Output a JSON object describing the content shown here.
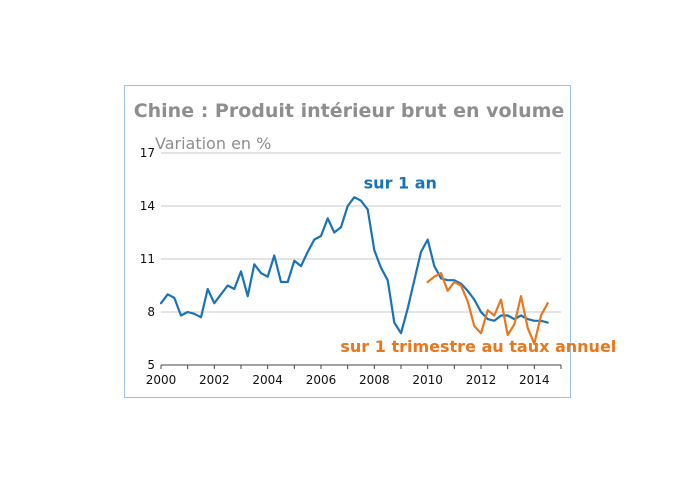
{
  "chart_data": {
    "type": "line",
    "title": "Chine : Produit intérieur brut en volume",
    "ylabel": "Variation en %",
    "xlabel": "",
    "xlim": [
      2000,
      2015
    ],
    "ylim": [
      5,
      17
    ],
    "yticks": [
      5,
      8,
      11,
      14,
      17
    ],
    "ytick_labels": [
      "5",
      "8",
      "11",
      "14",
      "17"
    ],
    "xticks": [
      2000,
      2002,
      2004,
      2006,
      2008,
      2010,
      2012,
      2014
    ],
    "xtick_labels": [
      "2000",
      "2002",
      "2004",
      "2006",
      "2008",
      "2010",
      "2012",
      "2014"
    ],
    "grid": "horizontal",
    "series": [
      {
        "name": "sur 1 an",
        "color": "#1a72b8",
        "x": [
          2000.0,
          2000.25,
          2000.5,
          2000.75,
          2001.0,
          2001.25,
          2001.5,
          2001.75,
          2002.0,
          2002.25,
          2002.5,
          2002.75,
          2003.0,
          2003.25,
          2003.5,
          2003.75,
          2004.0,
          2004.25,
          2004.5,
          2004.75,
          2005.0,
          2005.25,
          2005.5,
          2005.75,
          2006.0,
          2006.25,
          2006.5,
          2006.75,
          2007.0,
          2007.25,
          2007.5,
          2007.75,
          2008.0,
          2008.25,
          2008.5,
          2008.75,
          2009.0,
          2009.25,
          2009.5,
          2009.75,
          2010.0,
          2010.25,
          2010.5,
          2010.75,
          2011.0,
          2011.25,
          2011.5,
          2011.75,
          2012.0,
          2012.25,
          2012.5,
          2012.75,
          2013.0,
          2013.25,
          2013.5,
          2013.75,
          2014.0,
          2014.25,
          2014.5
        ],
        "values": [
          8.5,
          9.0,
          8.8,
          7.8,
          8.0,
          7.9,
          7.7,
          9.3,
          8.5,
          9.0,
          9.5,
          9.3,
          10.3,
          8.9,
          10.7,
          10.2,
          10.0,
          11.2,
          9.7,
          9.7,
          10.9,
          10.6,
          11.4,
          12.1,
          12.3,
          13.3,
          12.5,
          12.8,
          14.0,
          14.5,
          14.3,
          13.8,
          11.5,
          10.5,
          9.8,
          7.4,
          6.8,
          8.2,
          9.8,
          11.4,
          12.1,
          10.6,
          9.9,
          9.8,
          9.8,
          9.6,
          9.2,
          8.7,
          8.0,
          7.6,
          7.5,
          7.8,
          7.8,
          7.6,
          7.8,
          7.6,
          7.5,
          7.5,
          7.4
        ]
      },
      {
        "name": "sur 1 trimestre au taux annuel",
        "color": "#e8771e",
        "x": [
          2010.0,
          2010.25,
          2010.5,
          2010.75,
          2011.0,
          2011.25,
          2011.5,
          2011.75,
          2012.0,
          2012.25,
          2012.5,
          2012.75,
          2013.0,
          2013.25,
          2013.5,
          2013.75,
          2014.0,
          2014.25,
          2014.5
        ],
        "values": [
          9.7,
          10.0,
          10.2,
          9.2,
          9.7,
          9.5,
          8.6,
          7.2,
          6.8,
          8.1,
          7.8,
          8.7,
          6.7,
          7.3,
          8.9,
          7.1,
          6.2,
          7.8,
          8.5
        ]
      }
    ],
    "annotations": [
      "sur 1 an",
      "sur 1 trimestre au taux annuel"
    ]
  }
}
